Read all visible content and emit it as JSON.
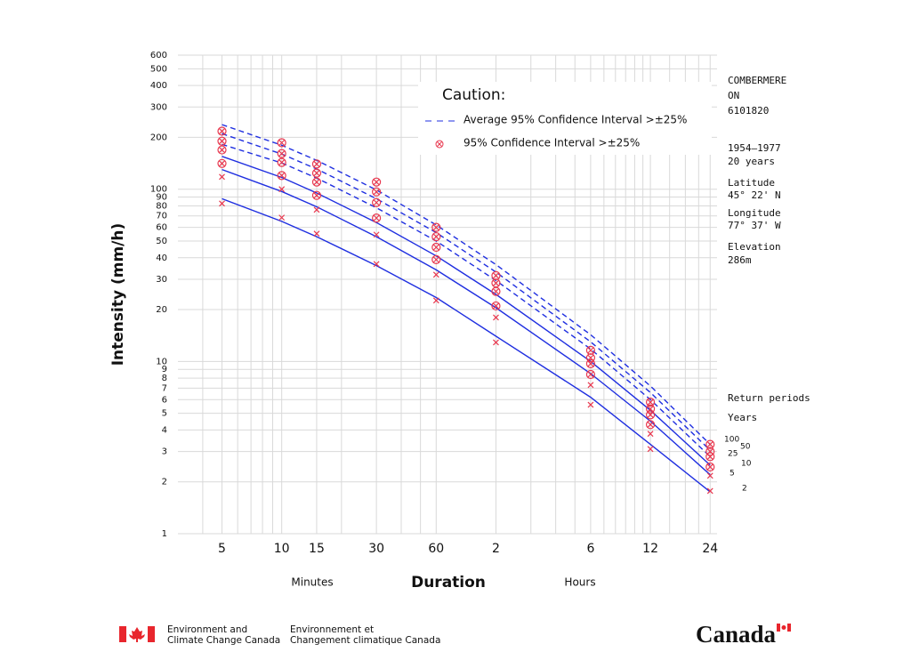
{
  "chart_data": {
    "type": "line",
    "ylabel": "Intensity (mm/h)",
    "xlabel": "Duration",
    "xlabel_minutes": "Minutes",
    "xlabel_hours": "Hours",
    "log_x": true,
    "log_y": true,
    "grid": true,
    "xlim": [
      3,
      1560
    ],
    "ylim": [
      1,
      600
    ],
    "xticks": [
      5,
      10,
      15,
      30,
      60,
      {
        "value": 120,
        "label": "2"
      },
      {
        "value": 360,
        "label": "6"
      },
      {
        "value": 720,
        "label": "12"
      },
      {
        "value": 1440,
        "label": "24"
      }
    ],
    "xminor": [
      4,
      6,
      7,
      8,
      9,
      20,
      40,
      50,
      180,
      240,
      300,
      420,
      480,
      540,
      600,
      660,
      900,
      1080,
      1260
    ],
    "yticks": [
      1,
      2,
      3,
      4,
      5,
      6,
      7,
      8,
      9,
      10,
      20,
      30,
      40,
      50,
      60,
      70,
      80,
      90,
      100,
      200,
      300,
      400,
      500,
      600
    ],
    "x": [
      5,
      10,
      15,
      30,
      60,
      120,
      360,
      720,
      1440
    ],
    "caution": {
      "title": "Caution:",
      "dashed": "Average 95% Confidence Interval >±25%",
      "marker": "95% Confidence Interval  >±25%"
    },
    "station": [
      "COMBERMERE",
      "ON",
      "6101820"
    ],
    "period": [
      "1954–1977",
      "20 years"
    ],
    "latitude": [
      "Latitude",
      "45° 22' N"
    ],
    "longitude": [
      "Longitude",
      "77° 37' W"
    ],
    "elevation": [
      "Elevation",
      "286m"
    ],
    "return_periods": [
      "Return periods",
      "Years"
    ],
    "series": [
      {
        "name": "2",
        "color": "#1f2fe0",
        "dashed": false,
        "marker": "x",
        "values": [
          88,
          65,
          53,
          36,
          23.5,
          14,
          6.2,
          3.3,
          1.75
        ],
        "points": [
          82.6,
          68.4,
          55.2,
          36.8,
          22.6,
          12.9,
          5.6,
          3.1,
          1.77
        ]
      },
      {
        "name": "5",
        "color": "#1f2fe0",
        "dashed": false,
        "marker": "x",
        "values": [
          130,
          97,
          79,
          53,
          34,
          20.5,
          8.5,
          4.5,
          2.2
        ],
        "points": [
          118,
          100,
          76,
          54.5,
          31.9,
          18,
          7.3,
          3.8,
          2.17
        ]
      },
      {
        "name": "10",
        "color": "#1f2fe0",
        "dashed": false,
        "marker": "circle",
        "values": [
          155,
          117,
          95,
          64,
          41,
          24.5,
          10,
          5.2,
          2.5
        ],
        "points": [
          141,
          120,
          92,
          68,
          39,
          21,
          8.4,
          4.3,
          2.44
        ]
      },
      {
        "name": "25",
        "color": "#1f2fe0",
        "dashed": true,
        "marker": "circle",
        "values": [
          182,
          142,
          116,
          78,
          50,
          29.5,
          11.8,
          6,
          2.8
        ],
        "points": [
          169,
          143,
          110,
          83.6,
          46,
          25.5,
          9.7,
          4.9,
          2.8
        ]
      },
      {
        "name": "50",
        "color": "#1f2fe0",
        "dashed": true,
        "marker": "circle",
        "values": [
          210,
          160,
          131,
          88,
          56,
          33,
          13,
          6.6,
          3.05
        ],
        "points": [
          190,
          161,
          124,
          96.5,
          53,
          28.5,
          10.5,
          5.3,
          3
        ]
      },
      {
        "name": "100",
        "color": "#1f2fe0",
        "dashed": true,
        "marker": "circle",
        "values": [
          237,
          180,
          147,
          99,
          62,
          36.5,
          14.3,
          7.2,
          3.3
        ],
        "points": [
          217,
          186,
          140,
          110,
          60,
          31.5,
          11.6,
          5.8,
          3.3
        ]
      }
    ],
    "marker_color": "#e8384f",
    "footer": {
      "en": [
        "Environment and",
        "Climate Change Canada"
      ],
      "fr": [
        "Environnement et",
        "Changement climatique Canada"
      ],
      "wordmark": "Canada"
    }
  }
}
